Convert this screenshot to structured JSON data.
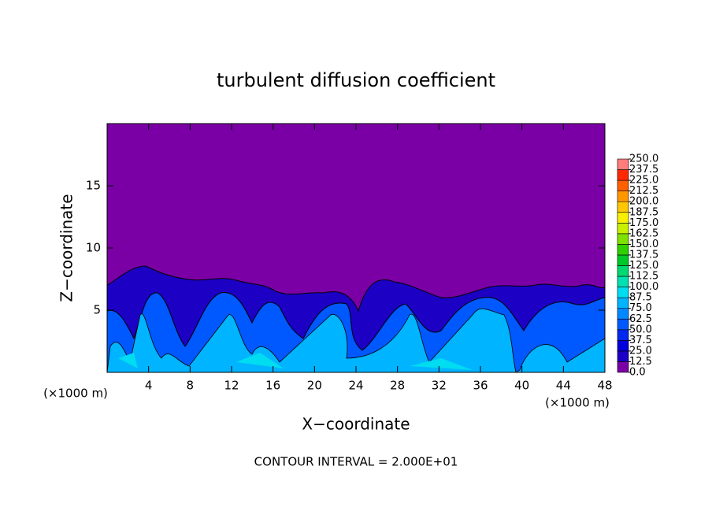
{
  "chart_data": {
    "type": "contour",
    "title": "turbulent diffusion coefficient",
    "xlabel": "X−coordinate",
    "ylabel": "Z−coordinate",
    "x_unit": "(×1000 m)",
    "x_unit_right": "(×1000 m)",
    "footnote": "CONTOUR INTERVAL = 2.000E+01",
    "xlim": [
      0,
      48
    ],
    "ylim": [
      0,
      20
    ],
    "xticks": [
      4,
      8,
      12,
      16,
      20,
      24,
      28,
      32,
      36,
      40,
      44,
      48
    ],
    "yticks": [
      5,
      10,
      15
    ],
    "colorbar_ticks": [
      {
        "value": 0,
        "label": "0.0"
      },
      {
        "value": 12.5,
        "label": "12.5"
      },
      {
        "value": 25,
        "label": "25.0"
      },
      {
        "value": 37.5,
        "label": "37.5"
      },
      {
        "value": 50,
        "label": "50.0"
      },
      {
        "value": 62.5,
        "label": "62.5"
      },
      {
        "value": 75,
        "label": "75.0"
      },
      {
        "value": 87.5,
        "label": "87.5"
      },
      {
        "value": 100,
        "label": "100.0"
      },
      {
        "value": 112.5,
        "label": "112.5"
      },
      {
        "value": 125,
        "label": "125.0"
      },
      {
        "value": 137.5,
        "label": "137.5"
      },
      {
        "value": 150,
        "label": "150.0"
      },
      {
        "value": 162.5,
        "label": "162.5"
      },
      {
        "value": 175,
        "label": "175.0"
      },
      {
        "value": 187.5,
        "label": "187.5"
      },
      {
        "value": 200,
        "label": "200.0"
      },
      {
        "value": 212.5,
        "label": "212.5"
      },
      {
        "value": 225,
        "label": "225.0"
      },
      {
        "value": 237.5,
        "label": "237.5"
      },
      {
        "value": 250,
        "label": "250.0"
      }
    ],
    "colors": [
      "#7a00a6",
      "#1c00c4",
      "#0000dc",
      "#0028f0",
      "#0058ff",
      "#0088ff",
      "#00b4ff",
      "#00dcf0",
      "#00e0b0",
      "#00d870",
      "#00c828",
      "#30d000",
      "#80e000",
      "#c8f000",
      "#f8f000",
      "#ffc800",
      "#ff9800",
      "#ff6000",
      "#ff2800",
      "#ff7c7c"
    ]
  }
}
